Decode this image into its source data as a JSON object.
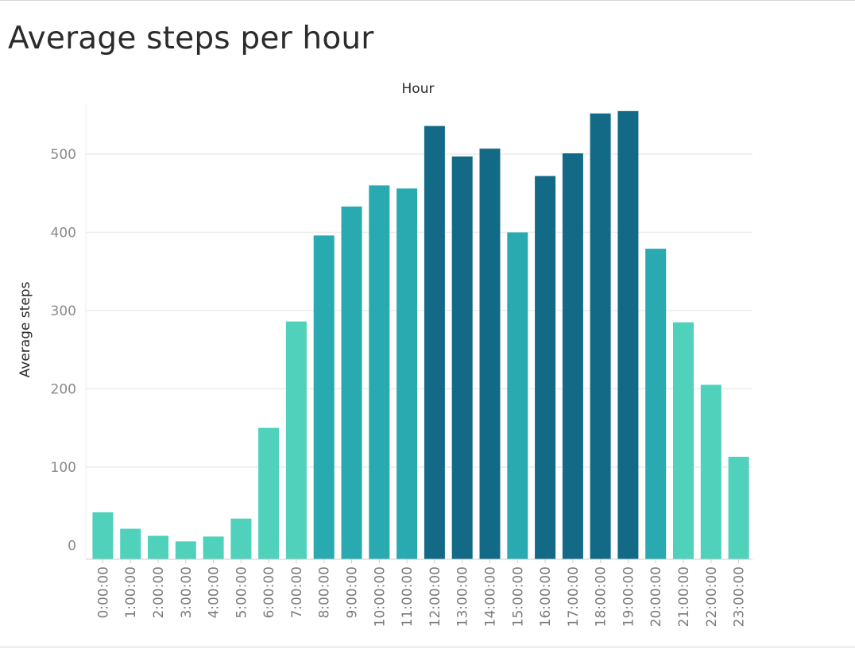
{
  "page": {
    "title": "Average steps per hour"
  },
  "chart_data": {
    "type": "bar",
    "title": "Average steps per hour",
    "xlabel": "Hour",
    "ylabel": "Average steps",
    "ylim": [
      -18,
      565
    ],
    "yticks": [
      0,
      100,
      200,
      300,
      400,
      500
    ],
    "grid": true,
    "categories": [
      "0:00:00",
      "1:00:00",
      "2:00:00",
      "3:00:00",
      "4:00:00",
      "5:00:00",
      "6:00:00",
      "7:00:00",
      "8:00:00",
      "9:00:00",
      "10:00:00",
      "11:00:00",
      "12:00:00",
      "13:00:00",
      "14:00:00",
      "15:00:00",
      "16:00:00",
      "17:00:00",
      "18:00:00",
      "19:00:00",
      "20:00:00",
      "21:00:00",
      "22:00:00",
      "23:00:00"
    ],
    "values": [
      42,
      21,
      12,
      5,
      11,
      34,
      150,
      286,
      396,
      433,
      460,
      456,
      536,
      497,
      507,
      400,
      472,
      501,
      552,
      555,
      379,
      285,
      205,
      113
    ],
    "colors": {
      "low": "#4fd1bb",
      "mid": "#28aab0",
      "high": "#136a86",
      "grid": "#ececec",
      "axis": "#cccccc"
    }
  }
}
